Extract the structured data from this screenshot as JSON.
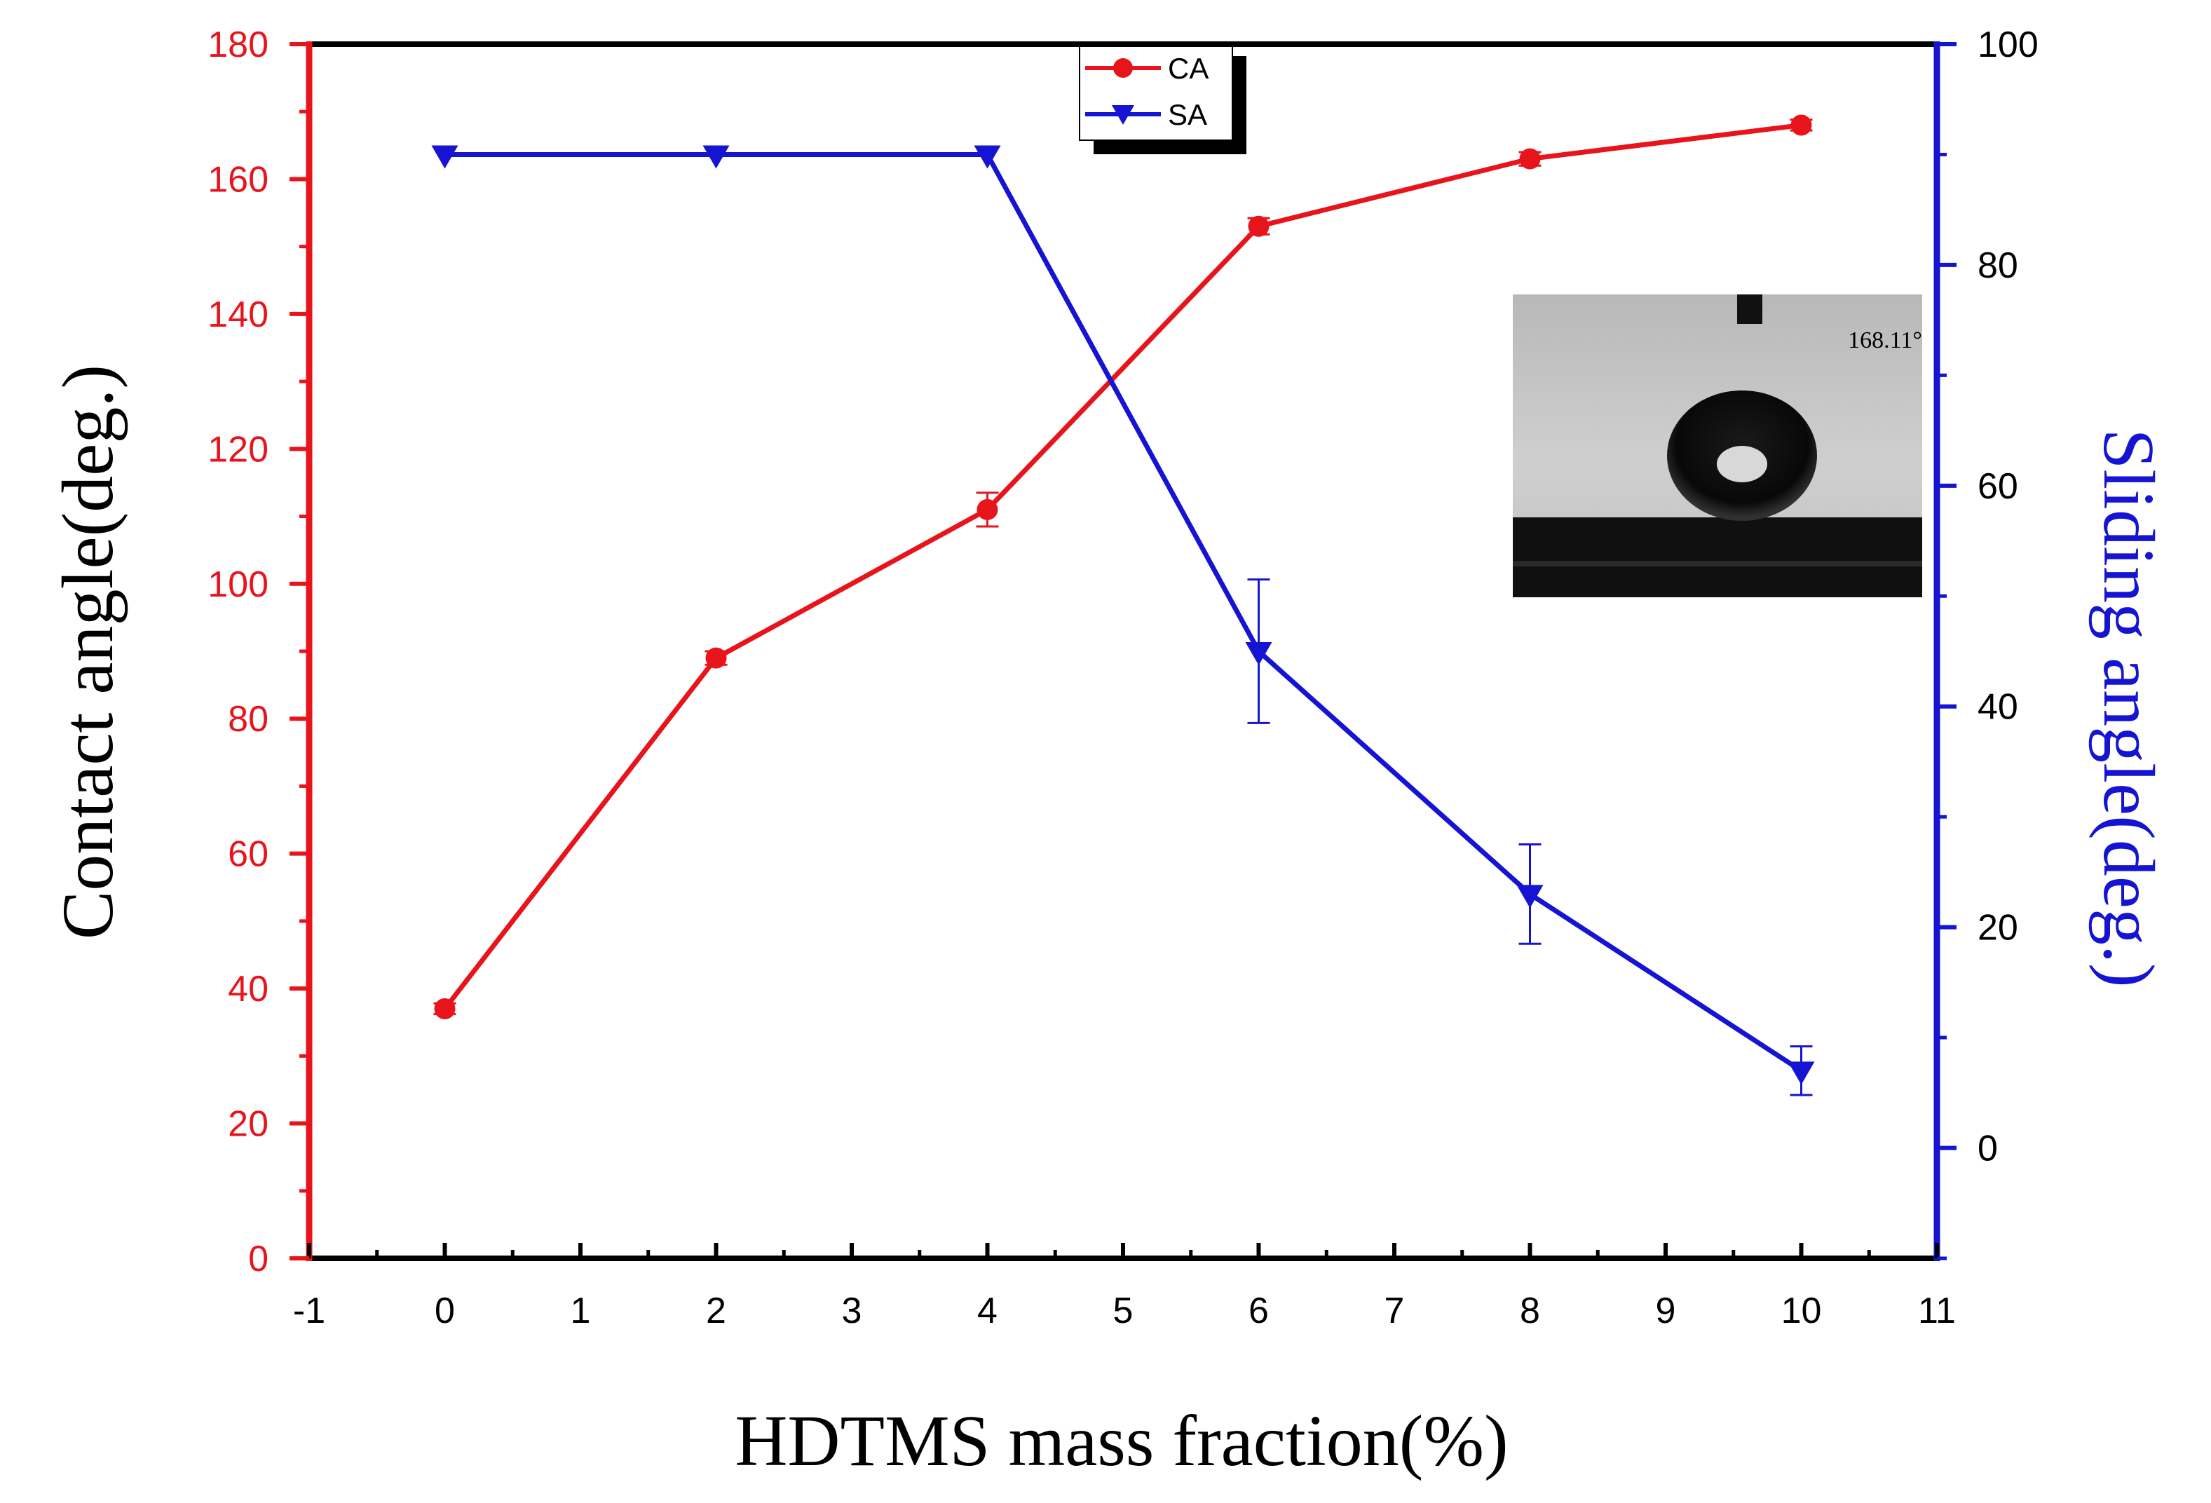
{
  "chart_data": {
    "type": "line",
    "xlabel": "HDTMS mass fraction(%)",
    "ylabel": "Contact angle(deg.)",
    "y2label": "Sliding angle(deg.)",
    "xlim": [
      -1,
      11
    ],
    "ylim": [
      0,
      180
    ],
    "y2lim": [
      -10,
      100
    ],
    "x_ticks": [
      -1,
      0,
      1,
      2,
      3,
      4,
      5,
      6,
      7,
      8,
      9,
      10,
      11
    ],
    "y_ticks": [
      0,
      20,
      40,
      60,
      80,
      100,
      120,
      140,
      160,
      180
    ],
    "y2_ticks": [
      0,
      20,
      40,
      60,
      80,
      100
    ],
    "grid": false,
    "legend_position": "top-center",
    "series": [
      {
        "name": "CA",
        "axis": "left",
        "color": "#e8141c",
        "marker": "circle",
        "x": [
          0,
          2,
          4,
          6,
          8,
          10
        ],
        "values": [
          37,
          89,
          111,
          153,
          163,
          168
        ],
        "error": [
          0.8,
          1.0,
          2.5,
          1.2,
          1.0,
          0.8
        ]
      },
      {
        "name": "SA",
        "axis": "right",
        "color": "#1414d2",
        "marker": "triangle-down",
        "x": [
          0,
          2,
          4,
          6,
          8,
          10
        ],
        "values": [
          90,
          90,
          90,
          45,
          23,
          7
        ],
        "error": [
          0,
          0,
          0,
          6.5,
          4.5,
          2.2
        ]
      }
    ],
    "annotations": [
      {
        "kind": "inset-photo",
        "label": "168.11°"
      }
    ]
  }
}
